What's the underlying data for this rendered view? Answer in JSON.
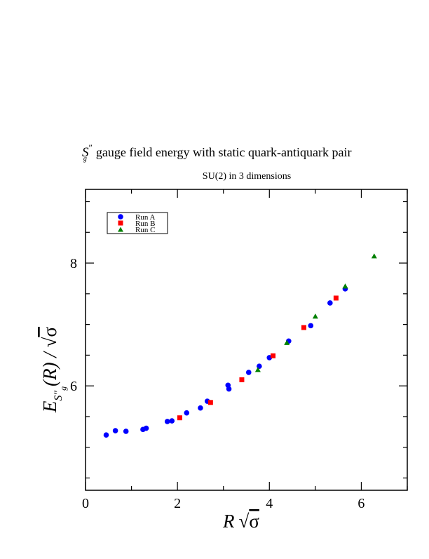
{
  "chart_data": {
    "type": "scatter",
    "title_prefix": "S",
    "title_prime": "″",
    "title_sub": "g",
    "title_text": "gauge field energy with static quark-antiquark pair",
    "subtitle": "SU(2) in 3 dimensions",
    "xlabel_var": "R",
    "xlabel_sqrt": "√",
    "xlabel_sigma": "σ",
    "ylabel_main": "E",
    "ylabel_sub": "S″",
    "ylabel_subsub": "g",
    "ylabel_rest": "(R) / ",
    "ylabel_sqrt": "√",
    "ylabel_sigma": "σ",
    "xlim": [
      0,
      7
    ],
    "ylim": [
      4.3,
      9.2
    ],
    "x_ticks": [
      0,
      2,
      4,
      6
    ],
    "x_tick_labels": [
      "0",
      "2",
      "4",
      "6"
    ],
    "y_ticks": [
      6,
      8
    ],
    "y_tick_labels": [
      "6",
      "8"
    ],
    "grid": false,
    "legend_placement": "top-left",
    "series": [
      {
        "name": "Run A",
        "marker": "circle",
        "color": "#0000ff",
        "x": [
          0.45,
          0.65,
          0.88,
          1.25,
          1.32,
          1.78,
          1.88,
          2.2,
          2.5,
          2.65,
          3.1,
          3.12,
          3.55,
          3.78,
          4.0,
          4.42,
          4.9,
          5.32,
          5.65
        ],
        "y": [
          5.2,
          5.27,
          5.26,
          5.29,
          5.31,
          5.42,
          5.43,
          5.56,
          5.64,
          5.75,
          6.01,
          5.95,
          6.22,
          6.32,
          6.46,
          6.73,
          6.98,
          7.35,
          7.58
        ]
      },
      {
        "name": "Run B",
        "marker": "square",
        "color": "#ff0000",
        "x": [
          2.05,
          2.72,
          3.4,
          4.08,
          4.75,
          5.45
        ],
        "y": [
          5.48,
          5.73,
          6.1,
          6.49,
          6.95,
          7.43
        ]
      },
      {
        "name": "Run C",
        "marker": "triangle",
        "color": "#008000",
        "x": [
          3.75,
          4.38,
          5.0,
          5.65,
          6.28
        ],
        "y": [
          6.26,
          6.7,
          7.13,
          7.62,
          8.11
        ]
      }
    ]
  }
}
